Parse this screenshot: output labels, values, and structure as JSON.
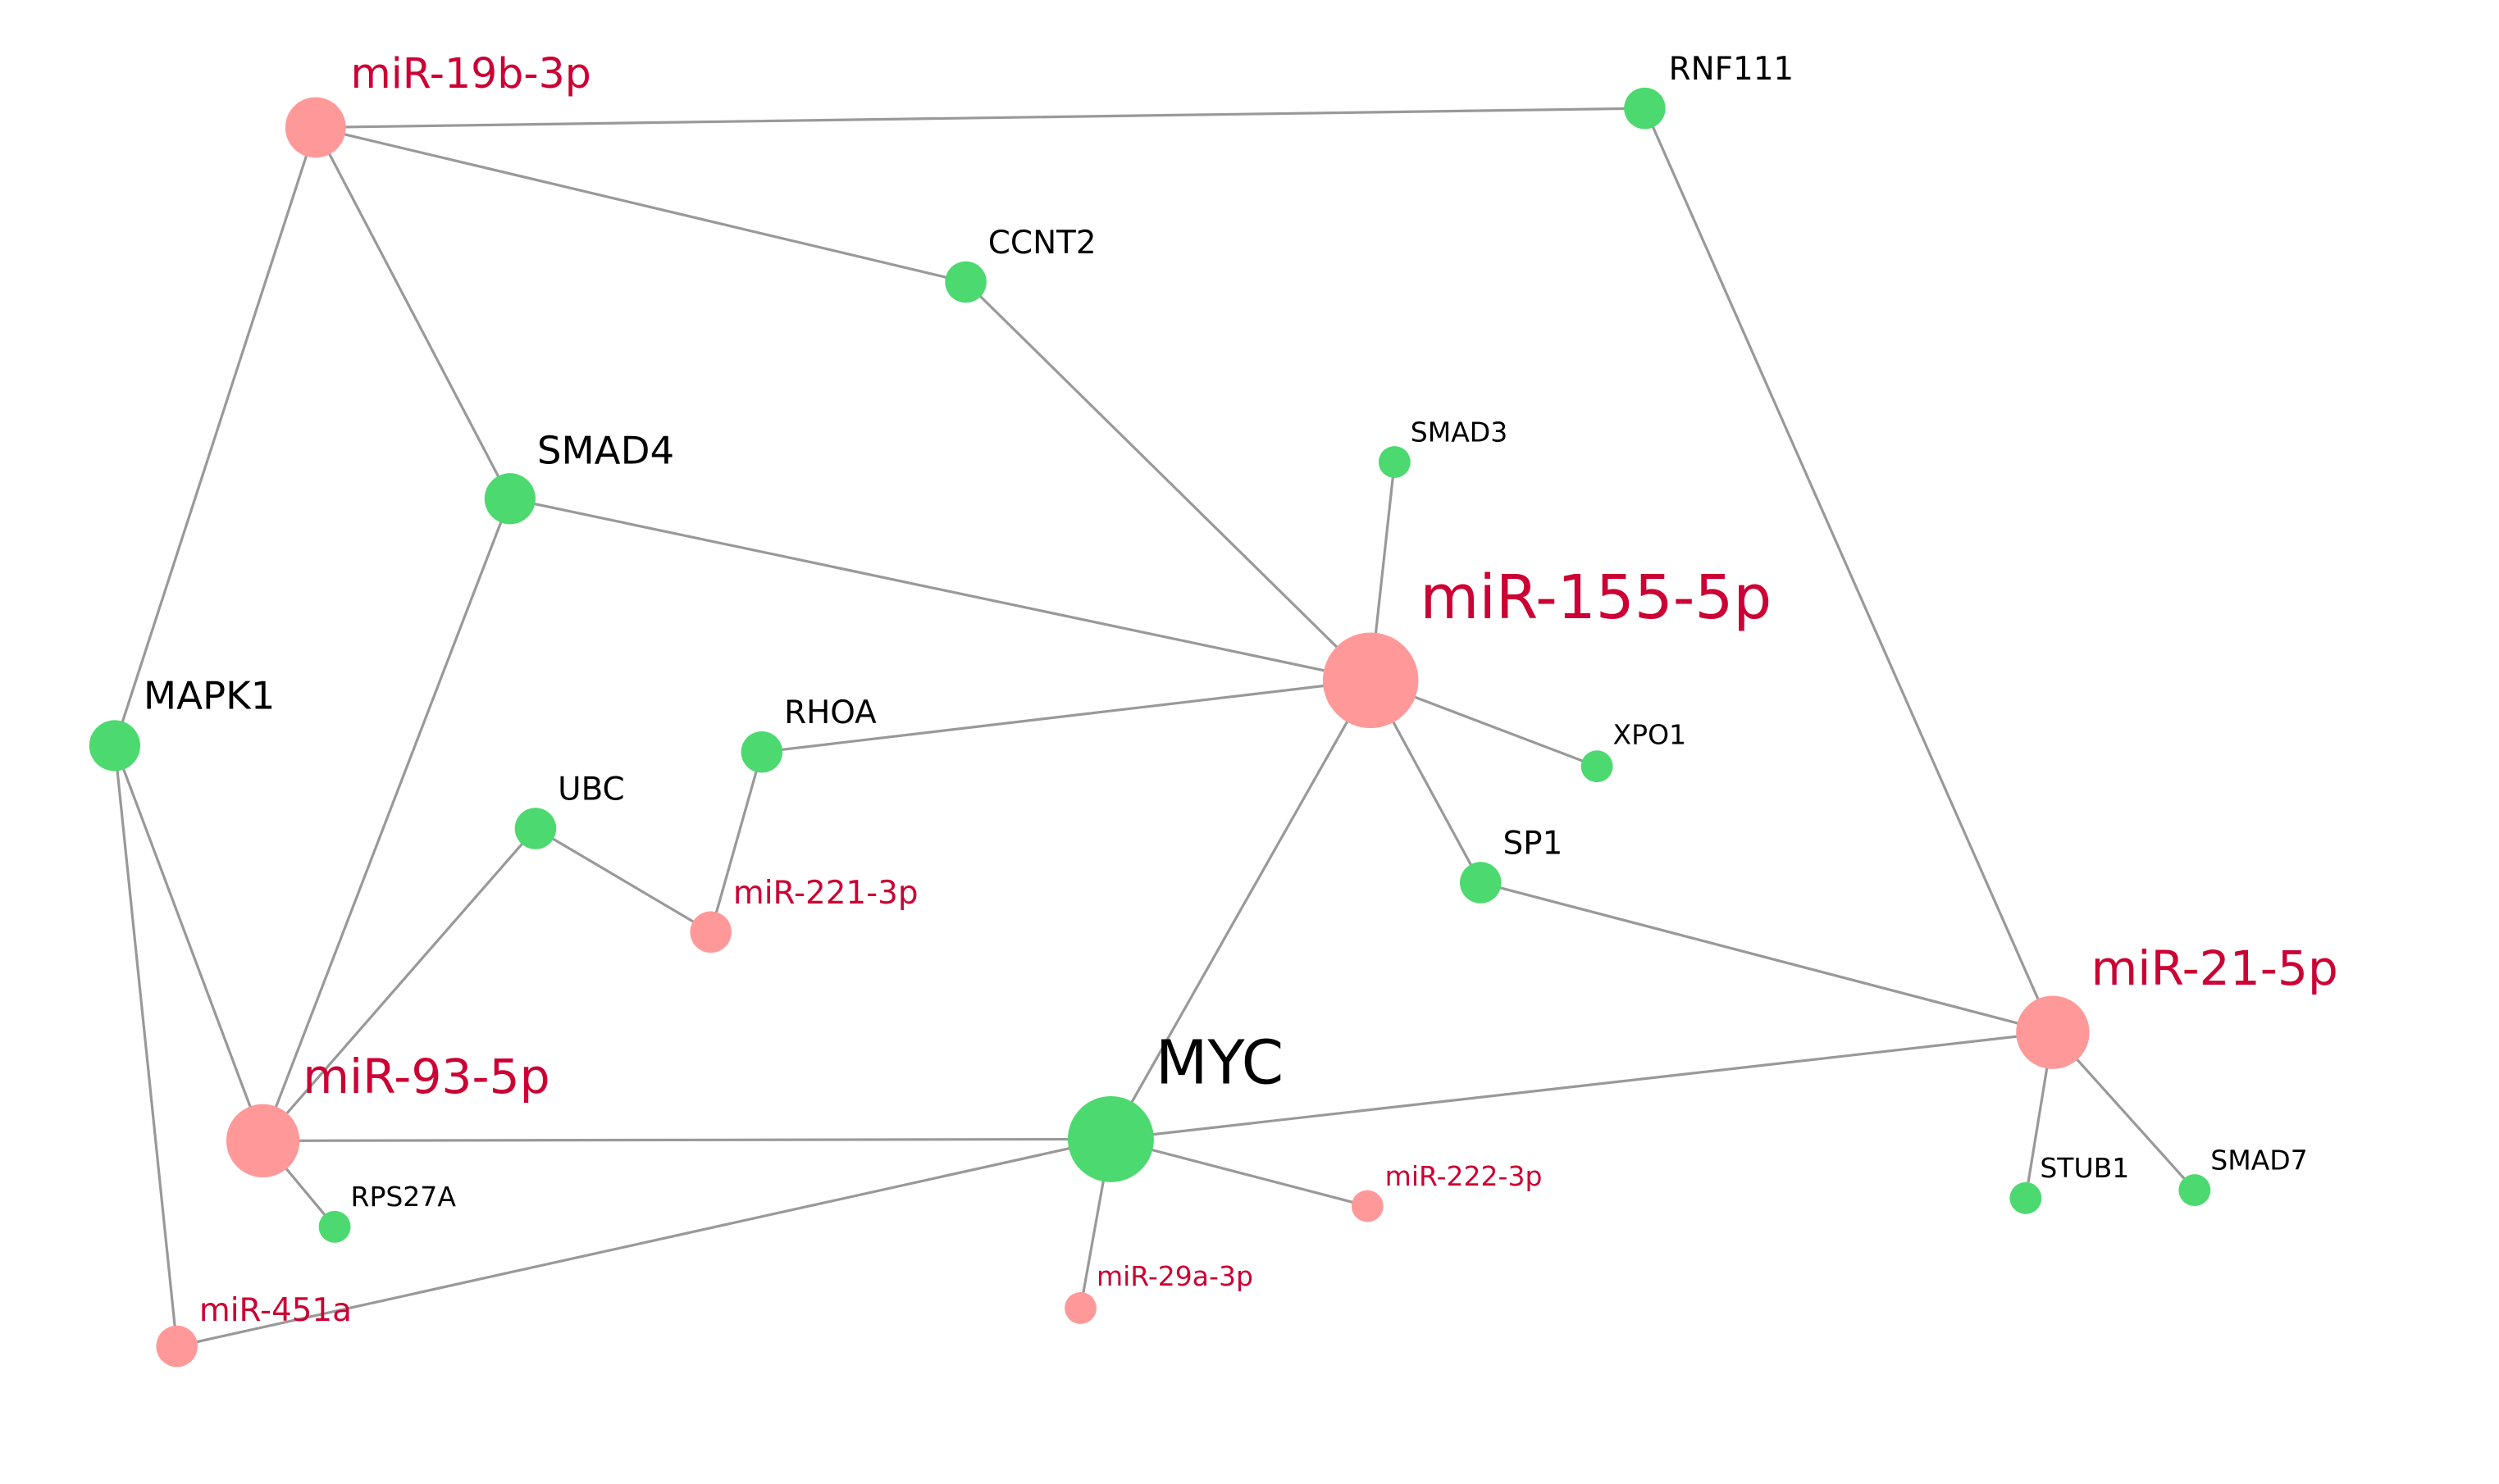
{
  "colors": {
    "mirna_node": "#ff9999",
    "gene_node": "#4cd96f",
    "mirna_label": "#cc0033",
    "gene_label": "#000000",
    "edge": "#999999"
  },
  "nodes": [
    {
      "id": "miR-19b-3p",
      "label": "miR-19b-3p",
      "kind": "mirna"
    },
    {
      "id": "RNF111",
      "label": "RNF111",
      "kind": "gene"
    },
    {
      "id": "CCNT2",
      "label": "CCNT2",
      "kind": "gene"
    },
    {
      "id": "SMAD4",
      "label": "SMAD4",
      "kind": "gene"
    },
    {
      "id": "SMAD3",
      "label": "SMAD3",
      "kind": "gene"
    },
    {
      "id": "miR-155-5p",
      "label": "miR-155-5p",
      "kind": "mirna"
    },
    {
      "id": "MAPK1",
      "label": "MAPK1",
      "kind": "gene"
    },
    {
      "id": "RHOA",
      "label": "RHOA",
      "kind": "gene"
    },
    {
      "id": "XPO1",
      "label": "XPO1",
      "kind": "gene"
    },
    {
      "id": "UBC",
      "label": "UBC",
      "kind": "gene"
    },
    {
      "id": "SP1",
      "label": "SP1",
      "kind": "gene"
    },
    {
      "id": "miR-221-3p",
      "label": "miR-221-3p",
      "kind": "mirna"
    },
    {
      "id": "miR-21-5p",
      "label": "miR-21-5p",
      "kind": "mirna"
    },
    {
      "id": "MYC",
      "label": "MYC",
      "kind": "gene"
    },
    {
      "id": "miR-93-5p",
      "label": "miR-93-5p",
      "kind": "mirna"
    },
    {
      "id": "STUB1",
      "label": "STUB1",
      "kind": "gene"
    },
    {
      "id": "SMAD7",
      "label": "SMAD7",
      "kind": "gene"
    },
    {
      "id": "miR-222-3p",
      "label": "miR-222-3p",
      "kind": "mirna"
    },
    {
      "id": "RPS27A",
      "label": "RPS27A",
      "kind": "gene"
    },
    {
      "id": "miR-29a-3p",
      "label": "miR-29a-3p",
      "kind": "mirna"
    },
    {
      "id": "miR-451a",
      "label": "miR-451a",
      "kind": "mirna"
    }
  ],
  "edges": [
    [
      "miR-19b-3p",
      "RNF111"
    ],
    [
      "miR-19b-3p",
      "CCNT2"
    ],
    [
      "miR-19b-3p",
      "SMAD4"
    ],
    [
      "miR-19b-3p",
      "MAPK1"
    ],
    [
      "RNF111",
      "miR-21-5p"
    ],
    [
      "CCNT2",
      "miR-155-5p"
    ],
    [
      "SMAD4",
      "miR-155-5p"
    ],
    [
      "SMAD4",
      "miR-93-5p"
    ],
    [
      "SMAD3",
      "miR-155-5p"
    ],
    [
      "miR-155-5p",
      "RHOA"
    ],
    [
      "miR-155-5p",
      "XPO1"
    ],
    [
      "miR-155-5p",
      "SP1"
    ],
    [
      "miR-155-5p",
      "MYC"
    ],
    [
      "RHOA",
      "miR-221-3p"
    ],
    [
      "UBC",
      "miR-221-3p"
    ],
    [
      "UBC",
      "miR-93-5p"
    ],
    [
      "SP1",
      "miR-21-5p"
    ],
    [
      "miR-21-5p",
      "MYC"
    ],
    [
      "miR-21-5p",
      "STUB1"
    ],
    [
      "miR-21-5p",
      "SMAD7"
    ],
    [
      "MAPK1",
      "miR-93-5p"
    ],
    [
      "MAPK1",
      "miR-451a"
    ],
    [
      "miR-93-5p",
      "MYC"
    ],
    [
      "miR-93-5p",
      "RPS27A"
    ],
    [
      "MYC",
      "miR-222-3p"
    ],
    [
      "MYC",
      "miR-29a-3p"
    ],
    [
      "MYC",
      "miR-451a"
    ]
  ]
}
